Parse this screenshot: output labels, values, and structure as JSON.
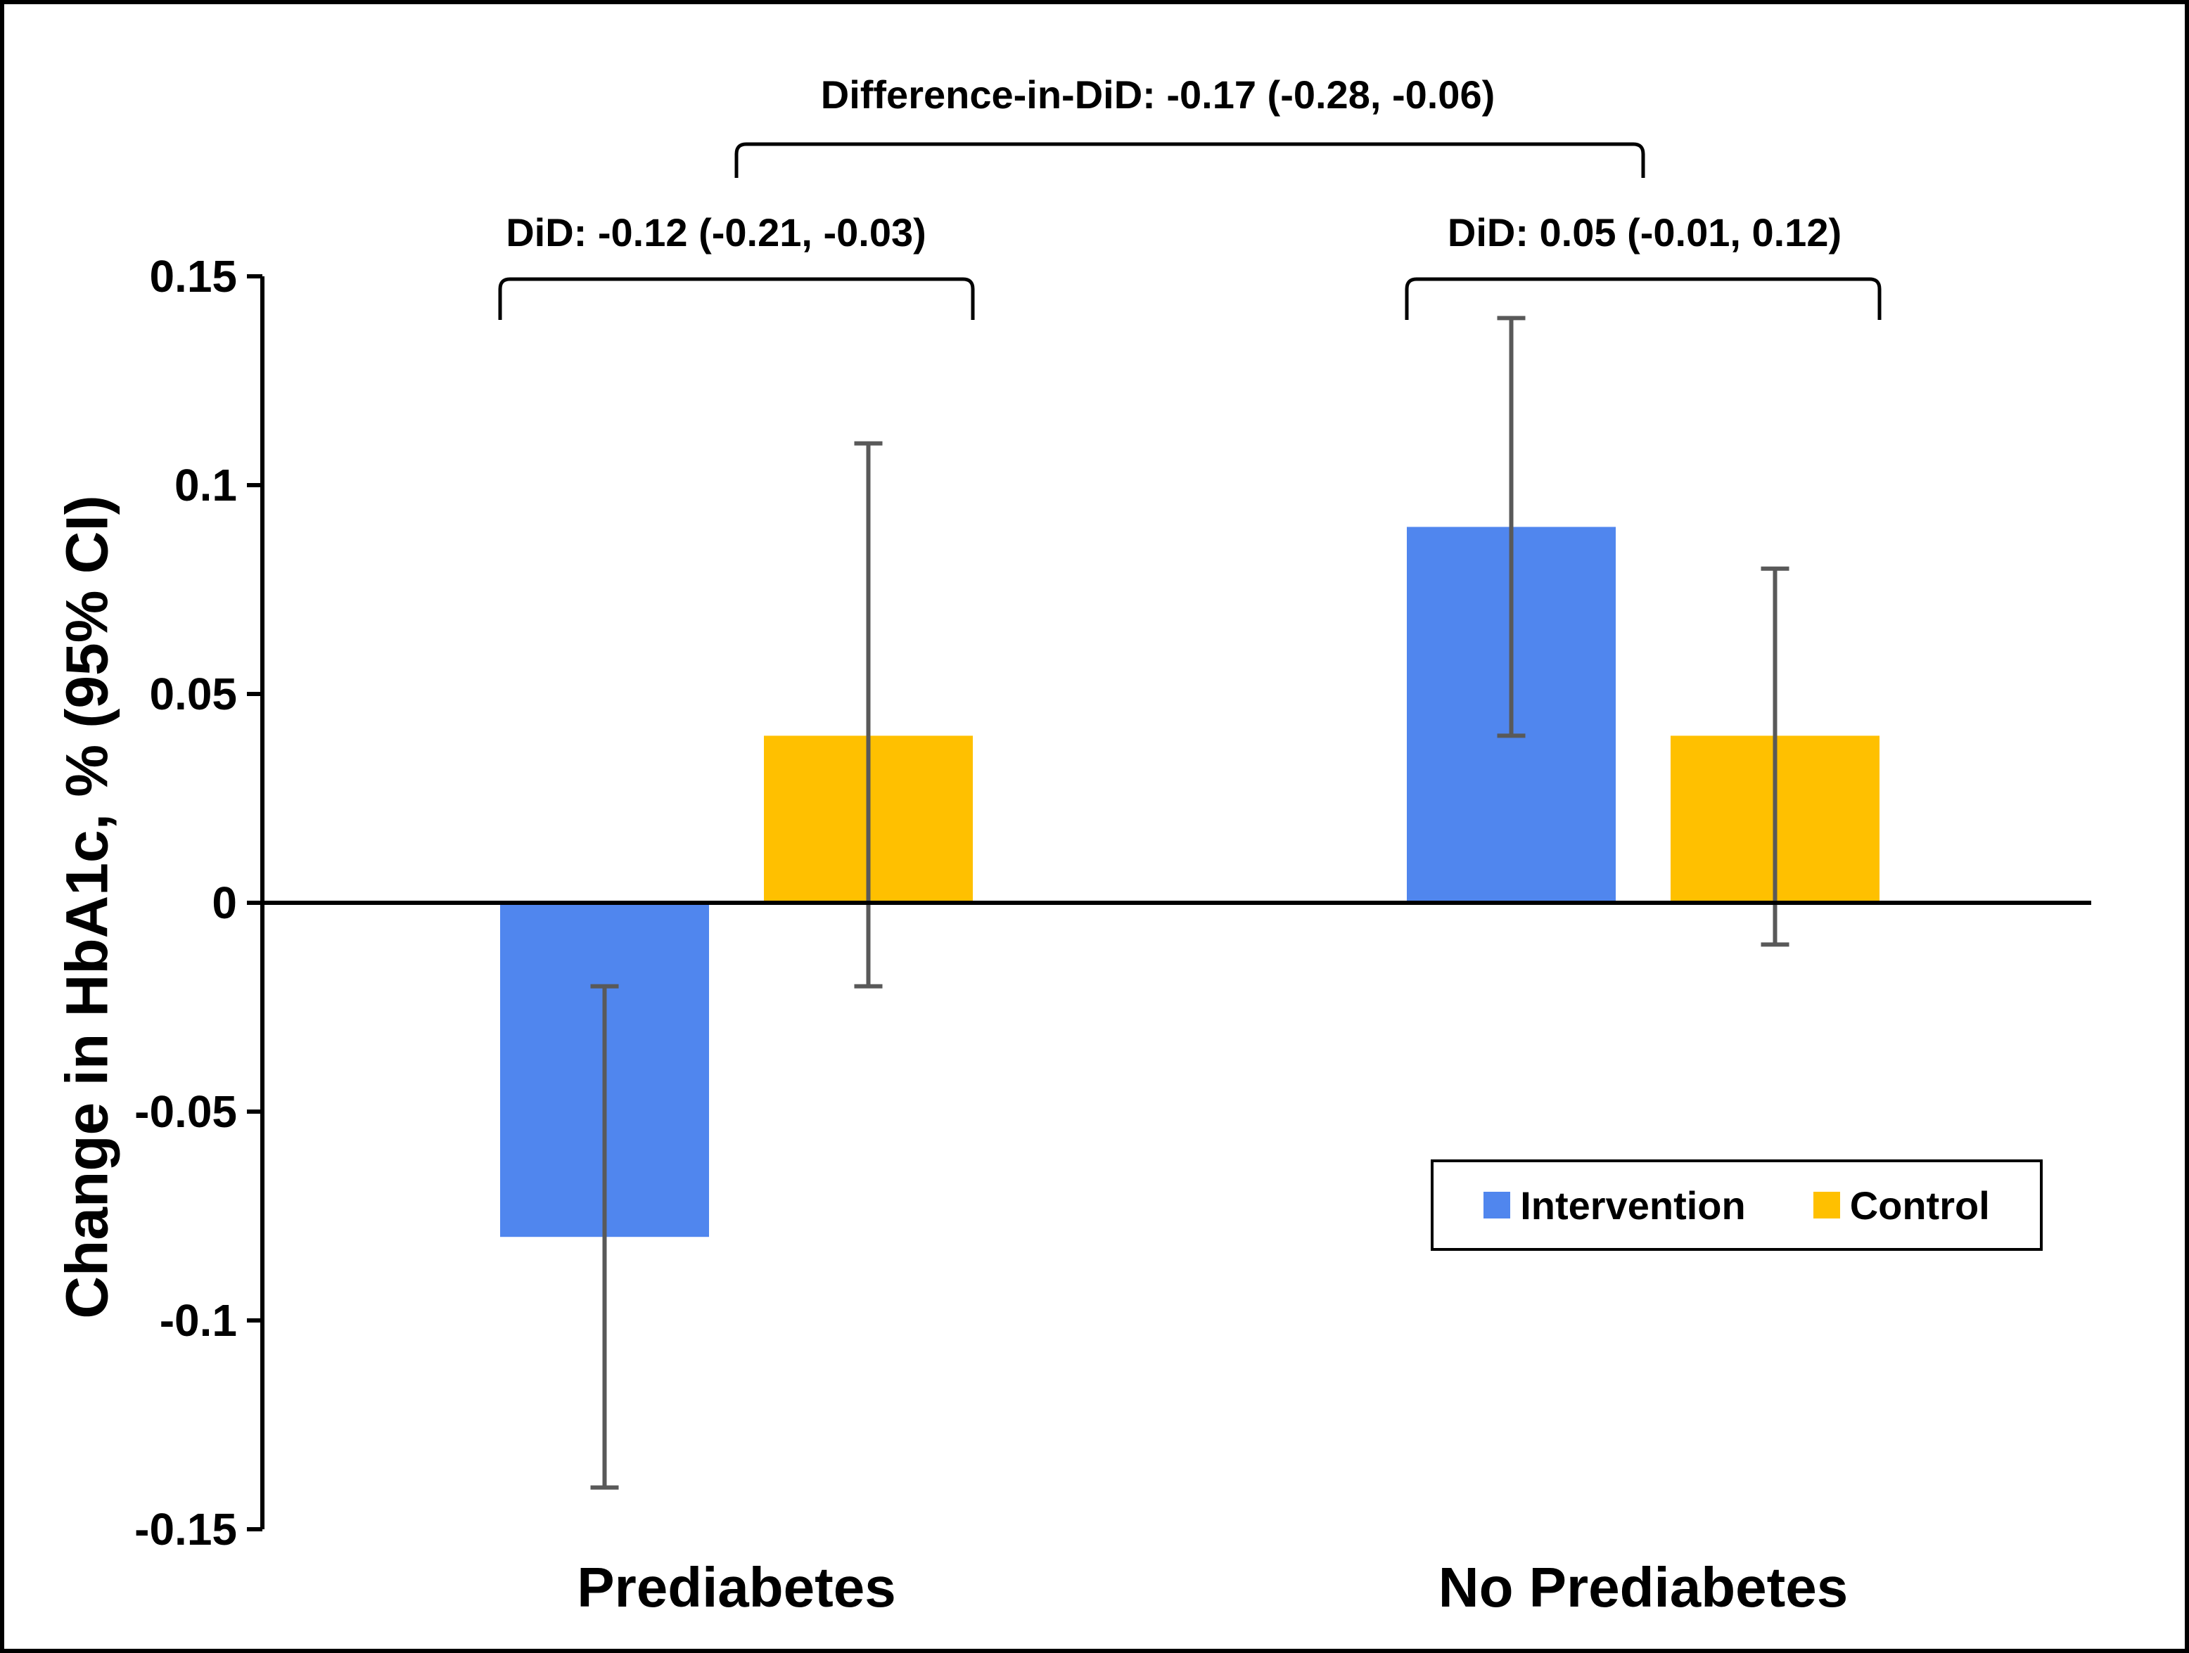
{
  "figure": {
    "background_color": "#FFFFFF",
    "frame_color": "#000000",
    "axis_color": "#000000",
    "error_bar_color": "#595959"
  },
  "chart_data": {
    "type": "bar",
    "title": "",
    "categories": [
      "Prediabetes",
      "No Prediabetes"
    ],
    "series": [
      {
        "name": "Intervention",
        "color": "#5086EE",
        "values": [
          -0.08,
          0.09
        ],
        "ci": [
          [
            -0.14,
            -0.02
          ],
          [
            0.04,
            0.14
          ]
        ]
      },
      {
        "name": "Control",
        "color": "#FFC000",
        "values": [
          0.04,
          0.04
        ],
        "ci": [
          [
            -0.02,
            0.11
          ],
          [
            -0.01,
            0.08
          ]
        ]
      }
    ],
    "xlabel": "",
    "ylabel": "Change in HbA1c, % (95% CI)",
    "ylim": [
      -0.15,
      0.15
    ],
    "yticks": [
      0.15,
      0.1,
      0.05,
      0,
      -0.05,
      -0.1,
      -0.15
    ],
    "ytick_labels": [
      "0.15",
      "0.1",
      "0.05",
      "0",
      "-0.05",
      "-0.1",
      "-0.15"
    ],
    "grid": false,
    "legend_position": "inside-right",
    "annotations": {
      "difference_in_did": "Difference-in-DiD: -0.17 (-0.28, -0.06)",
      "did_prediabetes": "DiD: -0.12 (-0.21, -0.03)",
      "did_no_prediabetes": "DiD: 0.05 (-0.01, 0.12)"
    }
  },
  "legend": {
    "items": [
      {
        "label": "Intervention",
        "color": "#5086EE"
      },
      {
        "label": "Control",
        "color": "#FFC000"
      }
    ]
  }
}
